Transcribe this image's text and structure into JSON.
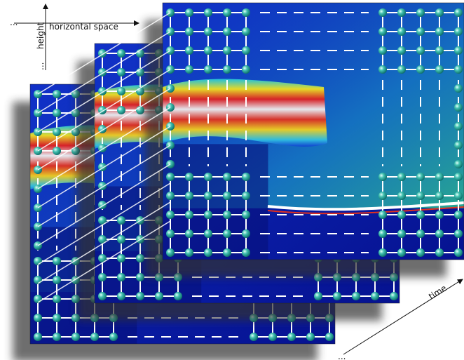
{
  "axes": {
    "horizontal": "horizontal space",
    "vertical": "height",
    "depth": "time",
    "ellipsis": "..."
  }
}
